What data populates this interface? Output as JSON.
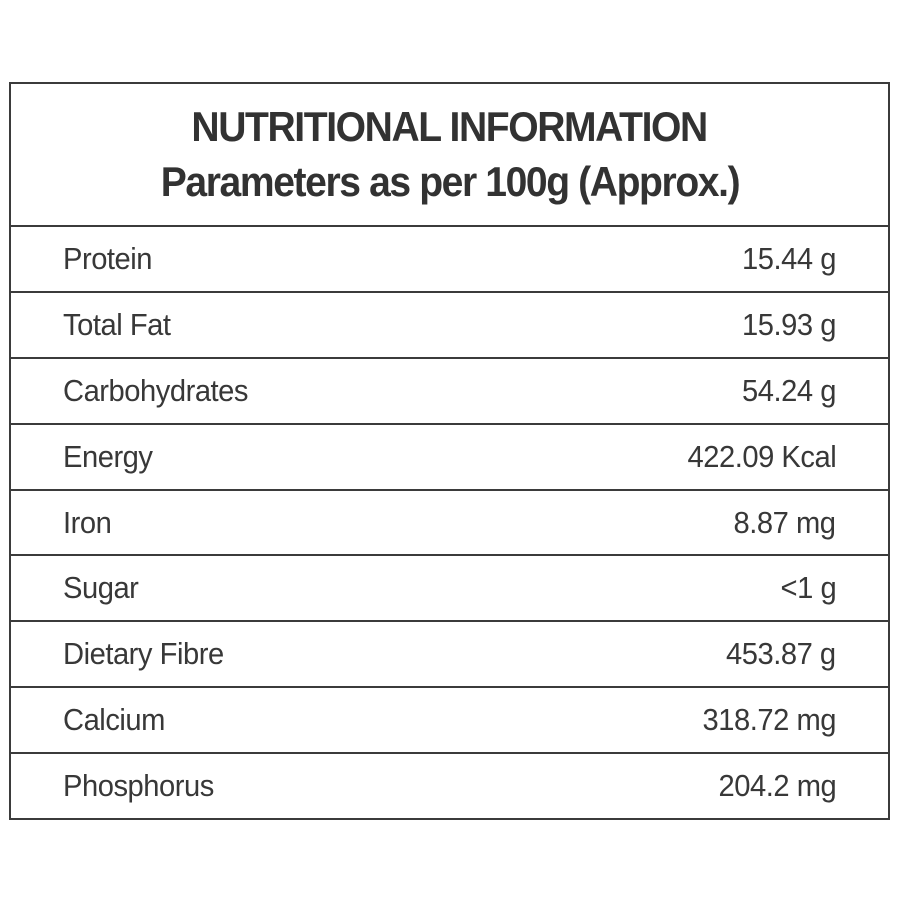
{
  "header": {
    "title": "NUTRITIONAL INFORMATION",
    "subtitle": "Parameters as per 100g (Approx.)"
  },
  "table": {
    "rows": [
      {
        "label": "Protein",
        "value": "15.44 g"
      },
      {
        "label": "Total Fat",
        "value": "15.93 g"
      },
      {
        "label": "Carbohydrates",
        "value": "54.24 g"
      },
      {
        "label": "Energy",
        "value": "422.09 Kcal"
      },
      {
        "label": "Iron",
        "value": "8.87 mg"
      },
      {
        "label": "Sugar",
        "value": "<1 g"
      },
      {
        "label": "Dietary Fibre",
        "value": "453.87 g"
      },
      {
        "label": "Calcium",
        "value": "318.72 mg"
      },
      {
        "label": "Phosphorus",
        "value": "204.2 mg"
      }
    ]
  },
  "colors": {
    "border": "#3b3b3b",
    "text": "#383838",
    "background": "#ffffff"
  }
}
